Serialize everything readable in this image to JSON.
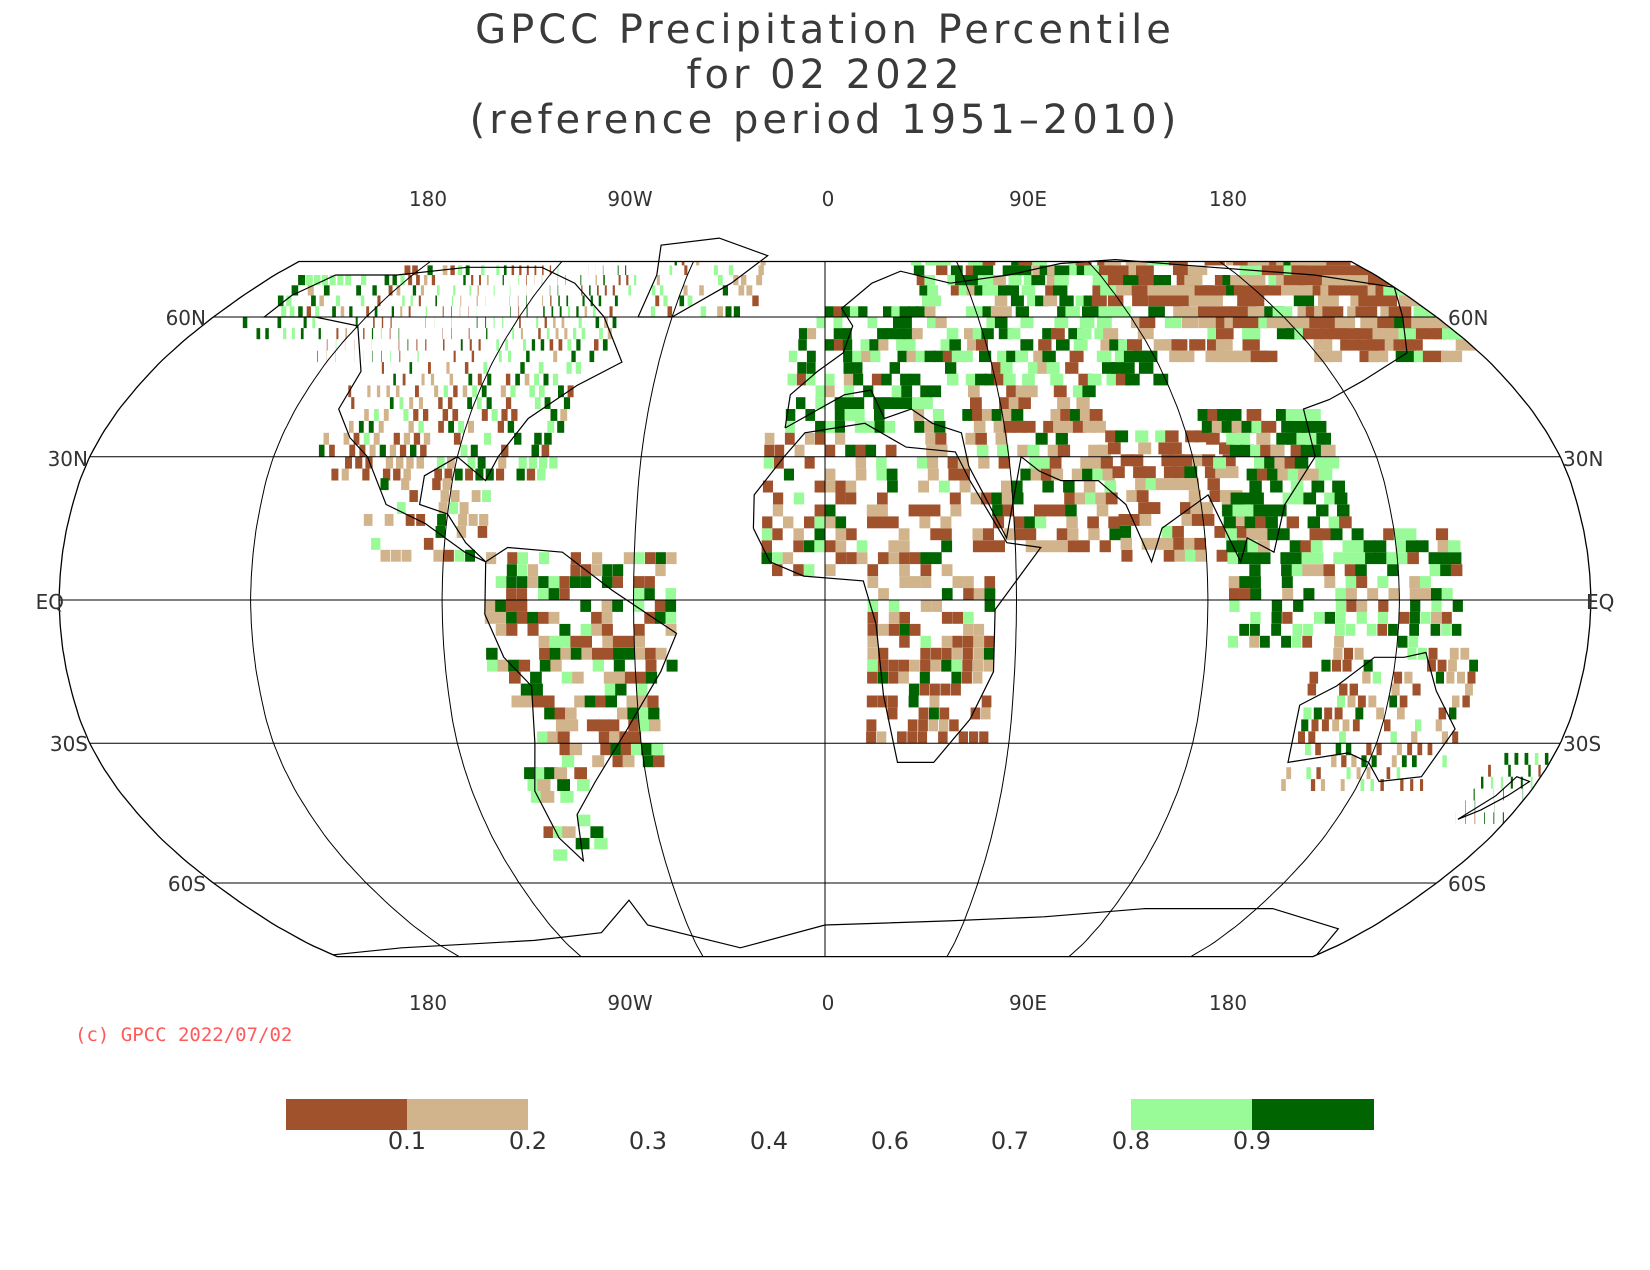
{
  "title": {
    "line1": "GPCC Precipitation Percentile",
    "line2": "for 02 2022",
    "line3": "(reference period 1951–2010)"
  },
  "lon_labels": [
    "180",
    "90W",
    "0",
    "90E",
    "180"
  ],
  "lat_labels": [
    "60N",
    "30N",
    "EQ",
    "30S",
    "60S"
  ],
  "copyright": "(c) GPCC 2022/07/02",
  "legend": {
    "ticks": [
      "0.1",
      "0.2",
      "0.3",
      "0.4",
      "0.6",
      "0.7",
      "0.8",
      "0.9"
    ],
    "bins": [
      {
        "range": "< 0.1",
        "color": "#a0522d"
      },
      {
        "range": "0.1 - 0.2",
        "color": "#d2b48c"
      },
      {
        "range": "0.8 - 0.9",
        "color": "#98fb98"
      },
      {
        "range": "> 0.9",
        "color": "#006400"
      }
    ]
  },
  "colors": {
    "very_dry": "#a0522d",
    "dry": "#d2b48c",
    "wet": "#98fb98",
    "very_wet": "#006400",
    "copyright": "#ff5a5a"
  },
  "map": {
    "projection": "Robinson",
    "central_longitude": 0,
    "graticule_longitudes": [
      -180,
      -135,
      -90,
      -45,
      0,
      45,
      90,
      135,
      180
    ],
    "graticule_latitudes": [
      60,
      30,
      0,
      -30,
      -60
    ]
  }
}
